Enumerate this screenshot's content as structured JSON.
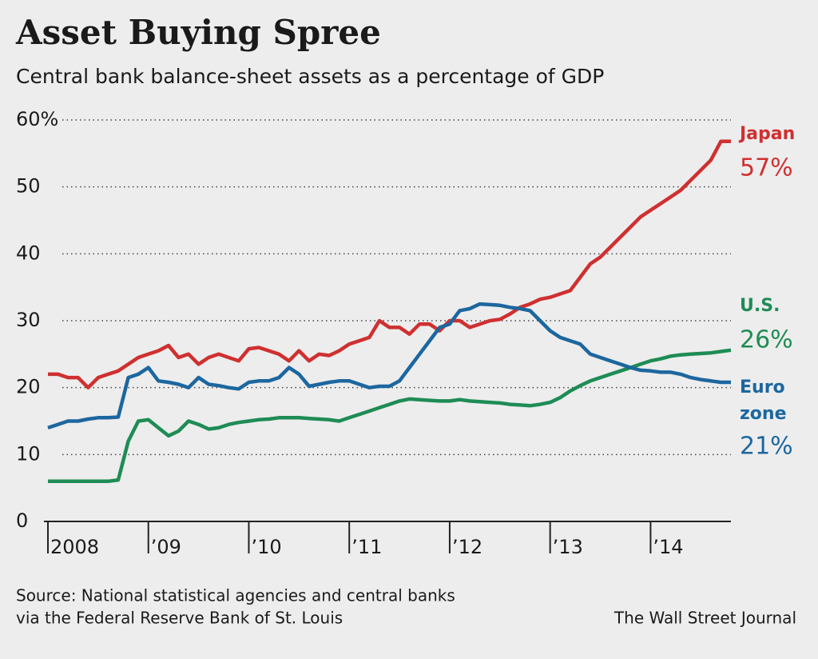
{
  "chart_data": {
    "type": "line",
    "title": "Asset Buying Spree",
    "subtitle": "Central bank balance-sheet assets as a percentage of GDP",
    "source": [
      "Source: National statistical agencies and central banks",
      "via the Federal Reserve Bank of St. Louis"
    ],
    "credit": "The Wall Street Journal",
    "x": [
      2008.0,
      2008.1,
      2008.2,
      2008.3,
      2008.4,
      2008.5,
      2008.6,
      2008.7,
      2008.8,
      2008.9,
      2009.0,
      2009.1,
      2009.2,
      2009.3,
      2009.4,
      2009.5,
      2009.6,
      2009.7,
      2009.8,
      2009.9,
      2010.0,
      2010.1,
      2010.2,
      2010.3,
      2010.4,
      2010.5,
      2010.6,
      2010.7,
      2010.8,
      2010.9,
      2011.0,
      2011.1,
      2011.2,
      2011.3,
      2011.4,
      2011.5,
      2011.6,
      2011.7,
      2011.8,
      2011.9,
      2012.0,
      2012.1,
      2012.2,
      2012.3,
      2012.4,
      2012.5,
      2012.6,
      2012.7,
      2012.8,
      2012.9,
      2013.0,
      2013.1,
      2013.2,
      2013.3,
      2013.4,
      2013.5,
      2013.6,
      2013.7,
      2013.8,
      2013.9,
      2014.0,
      2014.1,
      2014.2,
      2014.3,
      2014.4,
      2014.5,
      2014.6,
      2014.7,
      2014.8
    ],
    "xlim": [
      2008,
      2014.8
    ],
    "xticks": [
      {
        "value": 2008,
        "label": "2008"
      },
      {
        "value": 2009,
        "label": "’09"
      },
      {
        "value": 2010,
        "label": "’10"
      },
      {
        "value": 2011,
        "label": "’11"
      },
      {
        "value": 2012,
        "label": "’12"
      },
      {
        "value": 2013,
        "label": "’13"
      },
      {
        "value": 2014,
        "label": "’14"
      }
    ],
    "ylim": [
      0,
      60
    ],
    "yticks": [
      0,
      10,
      20,
      30,
      40,
      50,
      {
        "value": 60,
        "label": "60%"
      }
    ],
    "grid": true,
    "series": [
      {
        "name": "Japan",
        "color": "#cf3030",
        "values": [
          22,
          22,
          21.5,
          21.5,
          20,
          21.5,
          22,
          22.5,
          23.5,
          24.5,
          25,
          25.5,
          26.3,
          24.5,
          25,
          23.5,
          24.5,
          25,
          24.5,
          24,
          25.8,
          26,
          25.5,
          25,
          24,
          25.5,
          24,
          25,
          24.8,
          25.5,
          26.5,
          27,
          27.5,
          30,
          29,
          29,
          28,
          29.5,
          29.5,
          28.5,
          30,
          30,
          29,
          29.5,
          30,
          30.2,
          31,
          32,
          32.5,
          33.2,
          33.5,
          34,
          34.5,
          36.5,
          38.5,
          39.5,
          41,
          42.5,
          44,
          45.5,
          46.5,
          47.5,
          48.5,
          49.5,
          51,
          52.5,
          54,
          56.8,
          56.8
        ],
        "value_labels": [
          null,
          null,
          null,
          null,
          null,
          null,
          null,
          null,
          null,
          null,
          null,
          null,
          null,
          null,
          null,
          null,
          null,
          null,
          null,
          null,
          null,
          null,
          null,
          null,
          null,
          null,
          null,
          null,
          null,
          null,
          null,
          null,
          null,
          null,
          null,
          null,
          null,
          null,
          null,
          null,
          null,
          null,
          null,
          null,
          null,
          null,
          null,
          null,
          null,
          null,
          null,
          null,
          null,
          null,
          null,
          null,
          null,
          null,
          null,
          null,
          null,
          null,
          null,
          null,
          null,
          null,
          null,
          null,
          "57%"
        ]
      },
      {
        "name": "U.S.",
        "color": "#1e8c55",
        "values": [
          6,
          6,
          6,
          6,
          6,
          6,
          6,
          6.2,
          12,
          15,
          15.2,
          14,
          12.8,
          13.5,
          15,
          14.5,
          13.8,
          14,
          14.5,
          14.8,
          15,
          15.2,
          15.3,
          15.5,
          15.5,
          15.5,
          15.4,
          15.3,
          15.2,
          15,
          15.5,
          16,
          16.5,
          17,
          17.5,
          18,
          18.3,
          18.2,
          18.1,
          18,
          18,
          18.2,
          18,
          17.9,
          17.8,
          17.7,
          17.5,
          17.4,
          17.3,
          17.5,
          17.8,
          18.5,
          19.5,
          20.3,
          21,
          21.5,
          22,
          22.5,
          23,
          23.5,
          24,
          24.3,
          24.7,
          24.9,
          25,
          25.1,
          25.2,
          25.4,
          25.6
        ],
        "value_labels": [
          null,
          null,
          null,
          null,
          null,
          null,
          null,
          null,
          null,
          null,
          null,
          null,
          null,
          null,
          null,
          null,
          null,
          null,
          null,
          null,
          null,
          null,
          null,
          null,
          null,
          null,
          null,
          null,
          null,
          null,
          null,
          null,
          null,
          null,
          null,
          null,
          null,
          null,
          null,
          null,
          null,
          null,
          null,
          null,
          null,
          null,
          null,
          null,
          null,
          null,
          null,
          null,
          null,
          null,
          null,
          null,
          null,
          null,
          null,
          null,
          null,
          null,
          null,
          null,
          null,
          null,
          null,
          null,
          "26%"
        ]
      },
      {
        "name": "Euro zone",
        "color": "#1c679f",
        "values": [
          14,
          14.5,
          15,
          15,
          15.3,
          15.5,
          15.5,
          15.6,
          21.5,
          22,
          23,
          21,
          20.8,
          20.5,
          20,
          21.5,
          20.5,
          20.3,
          20,
          19.8,
          20.8,
          21,
          21,
          21.5,
          23,
          22,
          20.2,
          20.5,
          20.8,
          21,
          21,
          20.5,
          20,
          20.2,
          20.2,
          21,
          23,
          25,
          27,
          29,
          29.5,
          31.5,
          31.8,
          32.5,
          32.4,
          32.3,
          32,
          31.8,
          31.5,
          30,
          28.5,
          27.5,
          27,
          26.5,
          25,
          24.5,
          24,
          23.5,
          23,
          22.6,
          22.5,
          22.3,
          22.3,
          22,
          21.5,
          21.2,
          21,
          20.8,
          20.8
        ],
        "value_labels": [
          null,
          null,
          null,
          null,
          null,
          null,
          null,
          null,
          null,
          null,
          null,
          null,
          null,
          null,
          null,
          null,
          null,
          null,
          null,
          null,
          null,
          null,
          null,
          null,
          null,
          null,
          null,
          null,
          null,
          null,
          null,
          null,
          null,
          null,
          null,
          null,
          null,
          null,
          null,
          null,
          null,
          null,
          null,
          null,
          null,
          null,
          null,
          null,
          null,
          null,
          null,
          null,
          null,
          null,
          null,
          null,
          null,
          null,
          null,
          null,
          null,
          null,
          null,
          null,
          null,
          null,
          null,
          null,
          "21%"
        ]
      }
    ]
  }
}
